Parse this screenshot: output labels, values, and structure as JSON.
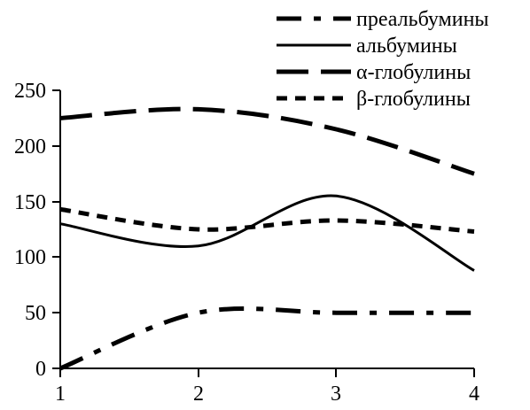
{
  "chart_data": {
    "type": "line",
    "title": "",
    "xlabel": "",
    "ylabel": "",
    "x": [
      1,
      2,
      3,
      4
    ],
    "xlim": [
      1,
      4
    ],
    "ylim": [
      0,
      250
    ],
    "x_ticks": [
      "1",
      "2",
      "3",
      "4"
    ],
    "y_ticks": [
      "0",
      "50",
      "100",
      "150",
      "200",
      "250"
    ],
    "grid": false,
    "legend_position": "top-right",
    "series": [
      {
        "name": "преальбумины",
        "values": [
          0,
          50,
          50,
          50
        ],
        "line_style": "dash-dot",
        "color": "#000000"
      },
      {
        "name": "альбумины",
        "values": [
          130,
          110,
          155,
          88
        ],
        "line_style": "solid",
        "color": "#000000"
      },
      {
        "name": "α-глобулины",
        "values": [
          225,
          233,
          215,
          175
        ],
        "line_style": "long-dash",
        "color": "#000000"
      },
      {
        "name": "β-глобулины",
        "values": [
          143,
          125,
          133,
          123
        ],
        "line_style": "short-dash",
        "color": "#000000"
      }
    ]
  }
}
